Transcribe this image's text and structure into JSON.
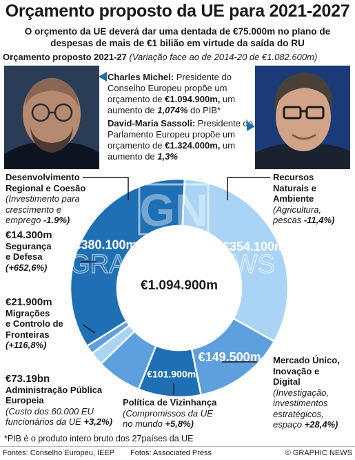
{
  "title": "Orçamento proposto da UE para 2021-2027",
  "subtitle": "O orçmento da UE deverá dar uma dentada de €75.000m no plano de despesas de mais de €1 bilião em virtude da saída do RU",
  "section_label": "Orçamento proposto 2021-27",
  "section_note": "(Variação face ao de 2014-20 de €1.082.600m)",
  "michel": {
    "name": "Charles Michel:",
    "text1": "Presidente do Conselho Europeu propõe um orçamento de",
    "amount": "€1.094.900m,",
    "text2": "um aumento de",
    "pct": "1,074%",
    "text3": "do PIB*"
  },
  "sassoli": {
    "name": "David-Maria Sassoli:",
    "text1": "Presidente do Parlamento Europeu propõe um orçamento de",
    "amount": "€1.324.000m,",
    "text2": "um aumento de",
    "pct": "1,3%"
  },
  "chart_data": {
    "type": "pie",
    "style": "donut",
    "total_label": "€1.094.900m",
    "categories": [
      "Recursos Naturais e Ambiente",
      "Mercado Único, Inovação e Digital",
      "Política de Vizinhança",
      "Administração Pública Europeia",
      "Migrações e Controlo de Fronteiras",
      "Segurança e Defesa",
      "Desenvolvimento Regional e Coesão"
    ],
    "values": [
      354100,
      149500,
      101900,
      73190,
      21900,
      14300,
      380100
    ],
    "value_labels": [
      "€354.100m",
      "€149.500m",
      "€101.900m",
      "€73.19bn",
      "€21.900m",
      "€14.300m",
      "€380.100m"
    ],
    "slice_colors": [
      "#a9d4f5",
      "#5e9fde",
      "#1f6fb5",
      "#5e9fde",
      "#a9d4f5",
      "#5e9fde",
      "#1f6fb5"
    ],
    "notes": [
      "(Agricultura, pescas -11,4%)",
      "(Investigação, investimentos estratégicos, espaço +28,4%)",
      "(Compromissos da UE no mundo +5,8%)",
      "(Custo dos 60.000 EU funcionários da UE +3,2%)",
      "(+116,8%)",
      "(+652,6%)",
      "(Investimento para crescimento e emprego -1.9%)"
    ]
  },
  "categories_text": {
    "regional": {
      "name1": "Desenvolvimento",
      "name2": "Regional e Coesão",
      "note1": "(Investimento para",
      "note2": "crescimento e",
      "note3": "emprego",
      "pct": "-1.9%)"
    },
    "security": {
      "value": "€14.300m",
      "name1": "Segurança",
      "name2": "e Defesa",
      "pct": "(+652,6%)"
    },
    "migration": {
      "value": "€21.900m",
      "name1": "Migrações",
      "name2": "e Controlo de",
      "name3": "Fronteiras",
      "pct": "(+116,8%)"
    },
    "admin": {
      "value": "€73.19bn",
      "name1": "Administração Pública",
      "name2": "Europeia",
      "note1": "(Custo dos 60.000 EU",
      "note2": "funcionários da UE",
      "pct": "+3,2%)"
    },
    "neighbour": {
      "name": "Política de Vizinhança",
      "note1": "(Compromissos da UE",
      "note2": "no mundo",
      "pct": "+5,8%)"
    },
    "market": {
      "name1": "Mercado Único,",
      "name2": "Inovação e",
      "name3": "Digital",
      "note1": "(Investigação,",
      "note2": "investimentos",
      "note3": "estratégicos,",
      "note4": "espaço",
      "pct": "+28,4%)"
    },
    "natural": {
      "name1": "Recursos",
      "name2": "Naturais e",
      "name3": "Ambiente",
      "note1": "(Agricultura,",
      "note2": "pescas",
      "pct": "-11,4%)"
    }
  },
  "watermark": "GRAPHIC NEWS",
  "footnote": "*PIB é o produto intero bruto dos 27países da UE",
  "footer": {
    "sources": "Fontes: Conselho Europeu, IEEP",
    "photos": "Fotos: Associated Press",
    "credit": "© GRAPHIC NEWS"
  }
}
